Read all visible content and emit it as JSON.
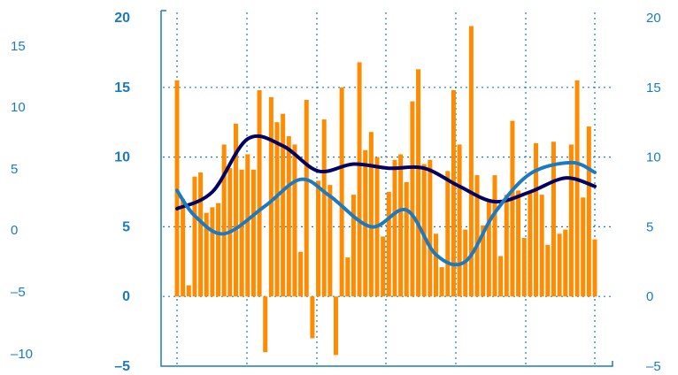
{
  "chart_data": {
    "type": "bar",
    "title": "",
    "xlabel": "",
    "ylabel": "",
    "grid": true,
    "ylim": [
      -5,
      20
    ],
    "left_ticks": [
      "20",
      "15",
      "10",
      "5",
      "0",
      "–5"
    ],
    "right_ticks": [
      "20",
      "15",
      "10",
      "5",
      "0",
      "–5"
    ],
    "outer_ticks": [
      "15",
      "10",
      "5",
      "0",
      "–5",
      "–10"
    ],
    "colors": {
      "bars": "#ff8c00",
      "line_dark": "#000066",
      "line_light": "#1b7ac0",
      "frame": "#1b7ac0",
      "grid": "#1b7ac0"
    },
    "bars": [
      15.5,
      7.0,
      0.8,
      8.6,
      8.9,
      6.0,
      6.4,
      6.7,
      10.9,
      9.2,
      12.4,
      9.1,
      10.2,
      9.1,
      14.8,
      -4.0,
      14.3,
      12.5,
      13.1,
      11.5,
      10.9,
      3.2,
      14.1,
      -3.0,
      8.3,
      12.7,
      8.0,
      -4.2,
      15.0,
      2.8,
      7.3,
      16.8,
      10.5,
      11.8,
      10.0,
      4.3,
      7.5,
      9.8,
      10.2,
      8.2,
      14.0,
      16.3,
      9.5,
      9.8,
      4.5,
      2.1,
      9.0,
      14.8,
      10.9,
      4.8,
      19.4,
      8.7,
      5.1,
      7.0,
      8.7,
      2.9,
      7.3,
      12.6,
      7.6,
      4.2,
      7.5,
      11.0,
      7.3,
      3.7,
      11.1,
      4.5,
      4.8,
      10.9,
      15.5,
      7.1,
      12.2,
      4.1
    ],
    "series": [
      {
        "x": [
          0,
          6,
          12,
          18,
          24,
          30,
          36,
          42,
          48,
          54,
          60,
          66,
          71
        ],
        "values": [
          6.3,
          7.5,
          11.3,
          10.8,
          9.0,
          9.5,
          9.2,
          9.2,
          7.9,
          6.8,
          7.5,
          8.5,
          7.9
        ]
      },
      {
        "x": [
          0,
          3,
          8,
          15,
          21,
          26,
          33,
          39,
          44,
          49,
          54,
          60,
          67,
          71
        ],
        "values": [
          7.6,
          5.8,
          4.5,
          6.5,
          8.4,
          7.2,
          5.0,
          6.2,
          3.0,
          2.5,
          6.0,
          8.8,
          9.6,
          8.9
        ]
      }
    ]
  }
}
